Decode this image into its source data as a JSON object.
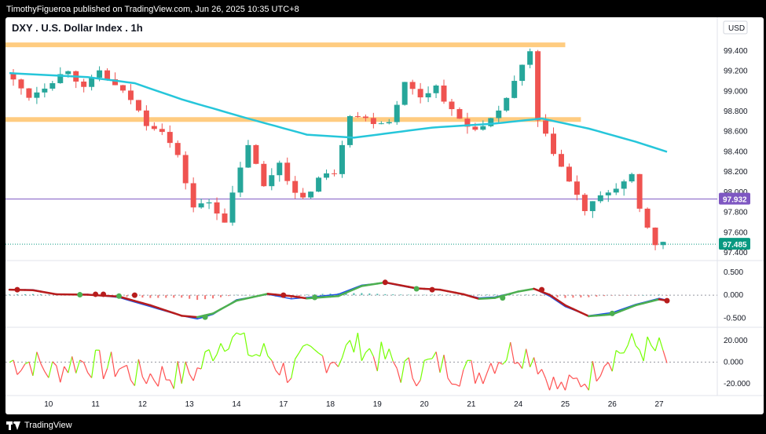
{
  "header": {
    "publish_line": "TimothyFigueroa published on TradingView.com, Jun 26, 2025 10:35 UTC+8"
  },
  "symbol": {
    "title": "DXY . U.S. Dollar Index . 1h",
    "currency": "USD"
  },
  "footer": {
    "brand": "TradingView"
  },
  "colors": {
    "up": "#26a69a",
    "down": "#ef5350",
    "ma": "#26c6da",
    "zone": "#ffcc80",
    "hline": "#7e57c2",
    "last_price": "#089981",
    "macd_fast": "#1e53e5",
    "macd_slow_up": "#4caf50",
    "macd_slow_down": "#b71c1c",
    "rsi_up": "#76ff03",
    "rsi_down": "#ff5252"
  },
  "chart_data": [
    {
      "type": "candlestick",
      "name": "price",
      "ylim": [
        97.4,
        99.5
      ],
      "y_ticks": [
        "99.400",
        "99.200",
        "99.000",
        "98.800",
        "98.600",
        "98.400",
        "98.200",
        "98.000",
        "97.800",
        "97.600",
        "97.400"
      ],
      "x_ticks": [
        "10",
        "11",
        "12",
        "13",
        "14",
        "17",
        "18",
        "19",
        "20",
        "21",
        "24",
        "25",
        "26",
        "27"
      ],
      "anchors": [
        [
          0,
          99.18
        ],
        [
          3,
          98.95
        ],
        [
          5,
          99.05
        ],
        [
          8,
          99.22
        ],
        [
          10,
          99.02
        ],
        [
          12,
          99.2
        ],
        [
          14,
          99.05
        ],
        [
          16,
          98.92
        ],
        [
          18,
          98.68
        ],
        [
          20,
          98.62
        ],
        [
          22,
          98.35
        ],
        [
          24,
          97.85
        ],
        [
          26,
          97.9
        ],
        [
          28,
          97.72
        ],
        [
          31,
          98.48
        ],
        [
          33,
          98.05
        ],
        [
          35,
          98.3
        ],
        [
          37,
          97.98
        ],
        [
          38,
          97.92
        ],
        [
          40,
          98.14
        ],
        [
          42,
          98.2
        ],
        [
          44,
          98.78
        ],
        [
          47,
          98.7
        ],
        [
          49,
          98.7
        ],
        [
          51,
          99.08
        ],
        [
          53,
          98.95
        ],
        [
          55,
          99.05
        ],
        [
          57,
          98.8
        ],
        [
          59,
          98.65
        ],
        [
          61,
          98.64
        ],
        [
          63,
          98.78
        ],
        [
          65,
          99.1
        ],
        [
          67,
          99.38
        ],
        [
          68,
          98.7
        ],
        [
          70,
          98.4
        ],
        [
          72,
          98.1
        ],
        [
          74,
          97.82
        ],
        [
          76,
          97.95
        ],
        [
          78,
          98.05
        ],
        [
          80,
          98.15
        ],
        [
          81,
          97.82
        ],
        [
          83,
          97.49
        ]
      ],
      "ma200": [
        [
          0,
          99.18
        ],
        [
          10,
          99.14
        ],
        [
          16,
          99.08
        ],
        [
          22,
          98.92
        ],
        [
          30,
          98.74
        ],
        [
          38,
          98.57
        ],
        [
          44,
          98.54
        ],
        [
          54,
          98.64
        ],
        [
          62,
          98.68
        ],
        [
          68,
          98.73
        ],
        [
          74,
          98.63
        ],
        [
          80,
          98.5
        ],
        [
          84,
          98.4
        ]
      ],
      "zones": [
        {
          "y": 99.46,
          "x_end": 71
        },
        {
          "y": 98.72,
          "x_end": 73
        }
      ],
      "hlines": [
        {
          "y": 97.932,
          "label": "97.932"
        }
      ],
      "last_price": {
        "y": 97.485,
        "label": "97.485"
      },
      "bars": 84
    },
    {
      "type": "line",
      "name": "macd",
      "ylim": [
        -0.65,
        0.62
      ],
      "y_ticks": [
        "0.500",
        "0.000",
        "-0.500"
      ],
      "fast": [
        [
          0,
          0.12
        ],
        [
          3,
          0.12
        ],
        [
          6,
          0.02
        ],
        [
          10,
          0.02
        ],
        [
          14,
          -0.05
        ],
        [
          18,
          -0.25
        ],
        [
          22,
          -0.45
        ],
        [
          24,
          -0.52
        ],
        [
          26,
          -0.42
        ],
        [
          29,
          -0.1
        ],
        [
          33,
          0.02
        ],
        [
          36,
          -0.08
        ],
        [
          38,
          -0.05
        ],
        [
          42,
          0.02
        ],
        [
          45,
          0.22
        ],
        [
          48,
          0.27
        ],
        [
          52,
          0.14
        ],
        [
          55,
          0.12
        ],
        [
          58,
          0.02
        ],
        [
          60,
          -0.06
        ],
        [
          62,
          -0.04
        ],
        [
          65,
          0.08
        ],
        [
          67,
          0.14
        ],
        [
          69,
          -0.02
        ],
        [
          71,
          -0.25
        ],
        [
          74,
          -0.45
        ],
        [
          77,
          -0.38
        ],
        [
          80,
          -0.2
        ],
        [
          83,
          -0.07
        ],
        [
          84,
          -0.11
        ]
      ],
      "slow": [
        [
          0,
          0.12
        ],
        [
          3,
          0.11
        ],
        [
          6,
          0.02
        ],
        [
          10,
          0.01
        ],
        [
          14,
          -0.03
        ],
        [
          18,
          -0.22
        ],
        [
          22,
          -0.45
        ],
        [
          24,
          -0.48
        ],
        [
          26,
          -0.4
        ],
        [
          29,
          -0.12
        ],
        [
          33,
          0.03
        ],
        [
          36,
          -0.02
        ],
        [
          38,
          -0.07
        ],
        [
          42,
          -0.02
        ],
        [
          45,
          0.2
        ],
        [
          48,
          0.28
        ],
        [
          52,
          0.15
        ],
        [
          55,
          0.12
        ],
        [
          58,
          0.02
        ],
        [
          60,
          -0.08
        ],
        [
          62,
          -0.06
        ],
        [
          65,
          0.08
        ],
        [
          67,
          0.14
        ],
        [
          69,
          0.01
        ],
        [
          71,
          -0.22
        ],
        [
          74,
          -0.46
        ],
        [
          77,
          -0.42
        ],
        [
          80,
          -0.22
        ],
        [
          83,
          -0.09
        ],
        [
          84,
          -0.12
        ]
      ],
      "cross_dots": [
        [
          1,
          0.12,
          "down"
        ],
        [
          9,
          0.01,
          "up"
        ],
        [
          11,
          0.02,
          "down"
        ],
        [
          12,
          0.02,
          "down"
        ],
        [
          14,
          -0.02,
          "up"
        ],
        [
          16,
          0.0,
          "down"
        ],
        [
          25,
          -0.48,
          "up"
        ],
        [
          35,
          0.0,
          "down"
        ],
        [
          39,
          -0.05,
          "up"
        ],
        [
          48,
          0.28,
          "down"
        ],
        [
          52,
          0.14,
          "up"
        ],
        [
          54,
          0.12,
          "down"
        ],
        [
          63,
          -0.06,
          "up"
        ],
        [
          68,
          0.12,
          "down"
        ],
        [
          77,
          -0.4,
          "up"
        ],
        [
          84,
          -0.12,
          "down"
        ]
      ]
    },
    {
      "type": "line",
      "name": "oscillator",
      "ylim": [
        -28,
        30
      ],
      "y_ticks": [
        "20.000",
        "0.000",
        "-20.000"
      ],
      "bars": 84,
      "seed": 7
    }
  ]
}
